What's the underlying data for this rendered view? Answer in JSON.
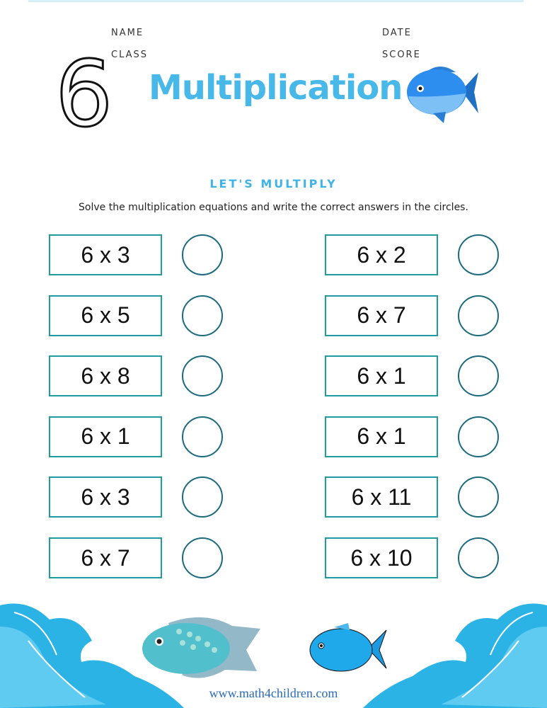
{
  "header": {
    "name_label": "NAME",
    "class_label": "CLASS",
    "date_label": "DATE",
    "score_label": "SCORE",
    "number": "6",
    "title": "Multiplication"
  },
  "section": {
    "heading": "LET'S  MULTIPLY",
    "instructions": "Solve the multiplication equations and write the correct answers in the circles."
  },
  "problems": {
    "left": [
      "6 x 3",
      "6 x 5",
      "6 x 8",
      "6 x 1",
      "6 x 3",
      "6 x 7"
    ],
    "right": [
      "6 x 2",
      "6 x 7",
      "6 x 1",
      "6 x 1",
      "6 x 11",
      "6 x 10"
    ]
  },
  "footer": {
    "website": "www.math4children.com"
  },
  "colors": {
    "title": "#48b8e8",
    "box_border": "#1f9ca0",
    "circle_border": "#1b6a7e",
    "wave": "#2bb3e6"
  }
}
